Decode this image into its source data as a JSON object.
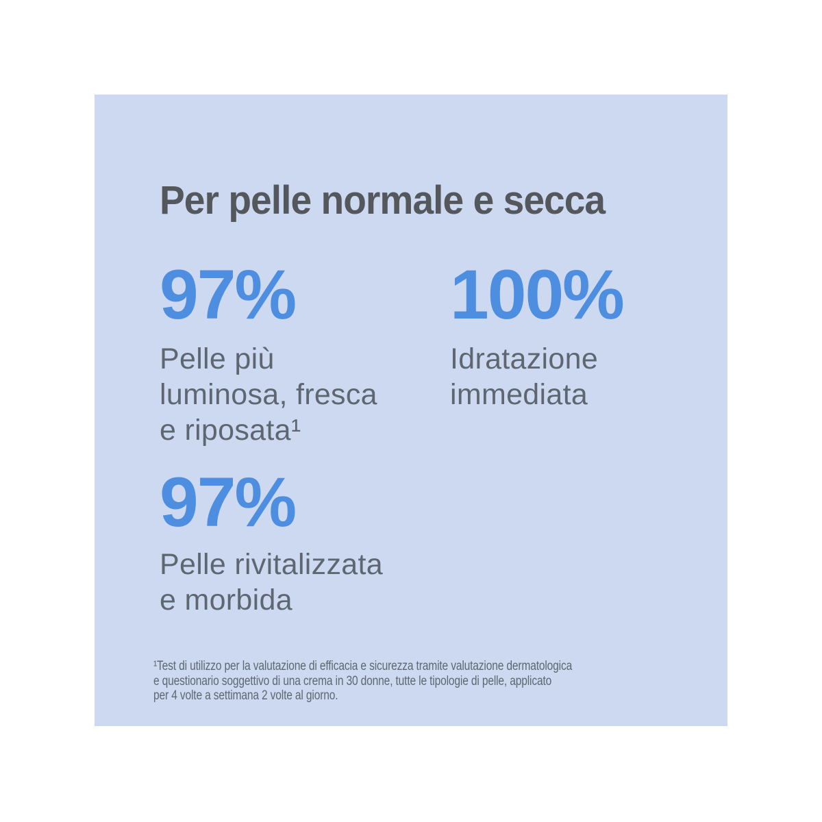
{
  "page": {
    "background_color": "#ffffff"
  },
  "panel": {
    "background_color": "#cdd9f0",
    "heading": "Per pelle normale e secca",
    "colors": {
      "heading_gray": "#54575c",
      "stat_blue": "#4e8ee0",
      "body_gray": "#5e6771"
    },
    "stats": [
      {
        "value": "97%",
        "description": "Pelle più\nluminosa, fresca\ne riposata¹"
      },
      {
        "value": "100%",
        "description": "Idratazione\nimmediata"
      },
      {
        "value": "97%",
        "description": "Pelle rivitalizzata\ne morbida"
      }
    ],
    "footnote": "¹Test di utilizzo per la valutazione di efficacia e sicurezza tramite valutazione dermatologica\ne questionario soggettivo di una crema in 30 donne, tutte le tipologie di pelle, applicato\nper 4 volte a settimana 2 volte al giorno."
  }
}
